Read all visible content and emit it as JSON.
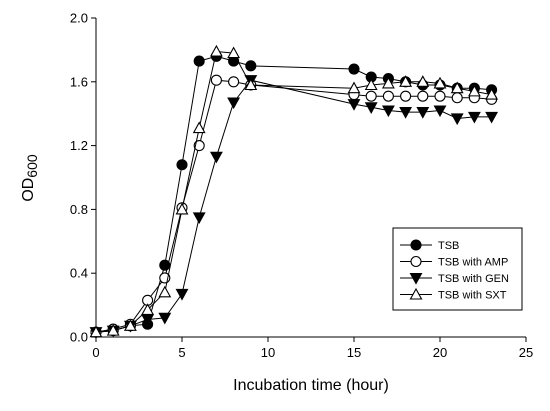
{
  "chart_data": {
    "type": "line",
    "title": "",
    "xlabel": "Incubation time (hour)",
    "ylabel": "OD600",
    "ylabel_main": "OD",
    "ylabel_sub": "600",
    "xlim": [
      0,
      25
    ],
    "ylim": [
      0.0,
      2.0
    ],
    "xticks": [
      0,
      5,
      10,
      15,
      20,
      25
    ],
    "xtick_labels": [
      "0",
      "5",
      "10",
      "15",
      "20",
      "25"
    ],
    "yticks": [
      0.0,
      0.4,
      0.8,
      1.2,
      1.6,
      2.0
    ],
    "ytick_labels": [
      "0.0",
      "0.4",
      "0.8",
      "1.2",
      "1.6",
      "2.0"
    ],
    "grid": false,
    "legend_position": "bottom-right",
    "series": [
      {
        "name": "TSB",
        "marker": "circle-filled",
        "points": [
          [
            0,
            0.03
          ],
          [
            1,
            0.04
          ],
          [
            2,
            0.07
          ],
          [
            3,
            0.08
          ],
          [
            4,
            0.45
          ],
          [
            5,
            1.08
          ],
          [
            6,
            1.73
          ],
          [
            7,
            1.76
          ],
          [
            8,
            1.73
          ],
          [
            9,
            1.7
          ],
          [
            15,
            1.68
          ],
          [
            16,
            1.63
          ],
          [
            17,
            1.62
          ],
          [
            18,
            1.6
          ],
          [
            19,
            1.58
          ],
          [
            20,
            1.58
          ],
          [
            21,
            1.56
          ],
          [
            22,
            1.56
          ],
          [
            23,
            1.55
          ]
        ]
      },
      {
        "name": "TSB with AMP",
        "marker": "circle-open",
        "points": [
          [
            0,
            0.03
          ],
          [
            1,
            0.05
          ],
          [
            2,
            0.08
          ],
          [
            3,
            0.23
          ],
          [
            4,
            0.37
          ],
          [
            5,
            0.81
          ],
          [
            6,
            1.2
          ],
          [
            7,
            1.61
          ],
          [
            8,
            1.6
          ],
          [
            9,
            1.58
          ],
          [
            15,
            1.52
          ],
          [
            16,
            1.51
          ],
          [
            17,
            1.51
          ],
          [
            18,
            1.51
          ],
          [
            19,
            1.51
          ],
          [
            20,
            1.51
          ],
          [
            21,
            1.5
          ],
          [
            22,
            1.5
          ],
          [
            23,
            1.49
          ]
        ]
      },
      {
        "name": "TSB with GEN",
        "marker": "triangle-down-filled",
        "points": [
          [
            0,
            0.03
          ],
          [
            1,
            0.04
          ],
          [
            2,
            0.07
          ],
          [
            3,
            0.11
          ],
          [
            4,
            0.12
          ],
          [
            5,
            0.27
          ],
          [
            6,
            0.75
          ],
          [
            7,
            1.13
          ],
          [
            8,
            1.47
          ],
          [
            9,
            1.61
          ],
          [
            15,
            1.46
          ],
          [
            16,
            1.44
          ],
          [
            17,
            1.42
          ],
          [
            18,
            1.41
          ],
          [
            19,
            1.41
          ],
          [
            20,
            1.42
          ],
          [
            21,
            1.37
          ],
          [
            22,
            1.38
          ],
          [
            23,
            1.38
          ]
        ]
      },
      {
        "name": "TSB with SXT",
        "marker": "triangle-up-open",
        "points": [
          [
            0,
            0.03
          ],
          [
            1,
            0.04
          ],
          [
            2,
            0.07
          ],
          [
            3,
            0.17
          ],
          [
            4,
            0.28
          ],
          [
            5,
            0.8
          ],
          [
            6,
            1.31
          ],
          [
            7,
            1.79
          ],
          [
            8,
            1.78
          ],
          [
            9,
            1.58
          ],
          [
            15,
            1.56
          ],
          [
            16,
            1.58
          ],
          [
            17,
            1.59
          ],
          [
            18,
            1.6
          ],
          [
            19,
            1.6
          ],
          [
            20,
            1.59
          ],
          [
            21,
            1.56
          ],
          [
            22,
            1.54
          ],
          [
            23,
            1.52
          ]
        ]
      }
    ]
  }
}
